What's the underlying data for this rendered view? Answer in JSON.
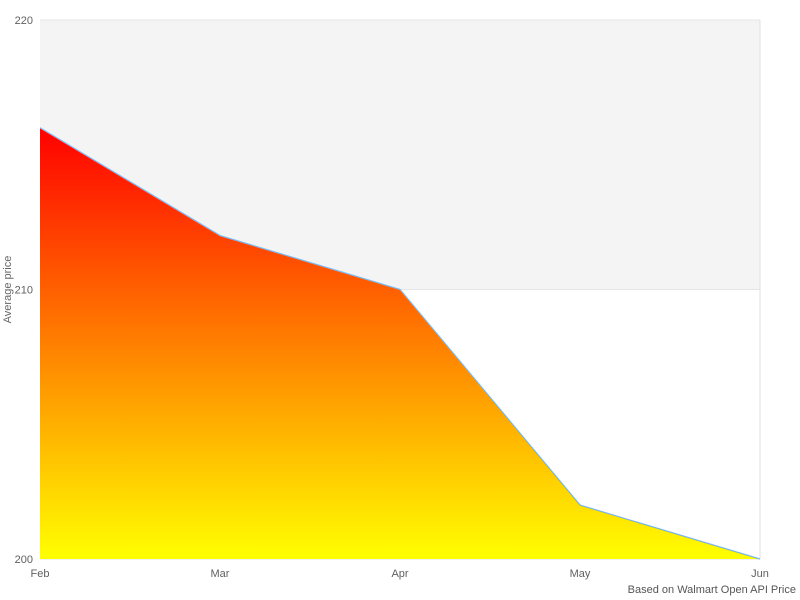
{
  "chart_data": {
    "type": "area",
    "categories": [
      "Feb",
      "Mar",
      "Apr",
      "May",
      "Jun"
    ],
    "values": [
      216,
      212,
      210,
      202,
      200
    ],
    "title": "",
    "xlabel": "",
    "ylabel": "Average price",
    "ylim": [
      200,
      220
    ],
    "yticks": [
      200,
      210,
      220
    ],
    "grid": "horizontal-only",
    "legend": "none",
    "alternate_band": {
      "from": 210,
      "to": 220
    }
  },
  "credits": {
    "text": "Based on Walmart Open API Price"
  },
  "colors": {
    "background": "#ffffff",
    "band": "#f4f4f4",
    "gridline": "#e6e6e6",
    "plot_right_border": "#e0e0e0",
    "line": "#7cb5ec",
    "area_gradient_top": "#ff0000",
    "area_gradient_bottom": "#ffff00",
    "axis_label": "#606060",
    "axis_title": "#666666",
    "credits_text": "#555555"
  }
}
